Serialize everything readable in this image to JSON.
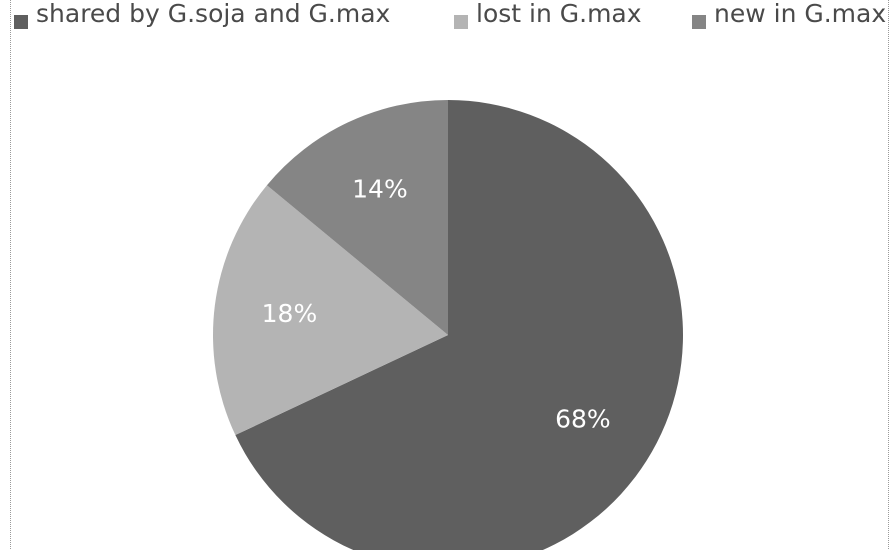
{
  "chart_data": {
    "type": "pie",
    "title": "",
    "categories": [
      "shared by G.soja and G.max",
      "lost in G.max",
      "new in G.max"
    ],
    "values": [
      68,
      18,
      14
    ],
    "data_labels": [
      "68%",
      "18%",
      "14%"
    ],
    "colors": [
      "#5f5f5f",
      "#b4b4b4",
      "#858585"
    ],
    "legend_position": "top",
    "start_angle_deg": 0,
    "direction": "clockwise"
  }
}
